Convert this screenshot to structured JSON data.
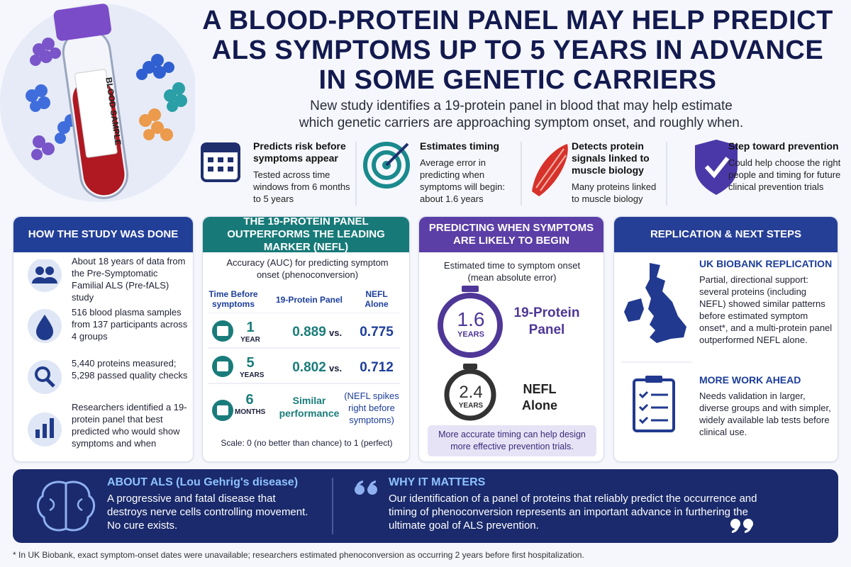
{
  "header": {
    "title_lines": [
      "A BLOOD-PROTEIN PANEL MAY HELP PREDICT",
      "ALS SYMPTOMS UP TO 5 YEARS IN ADVANCE",
      "IN SOME GENETIC CARRIERS"
    ],
    "subtitle_lines": [
      "New study identifies a 19-protein panel in blood that may help estimate",
      "which genetic carriers are approaching symptom onset, and roughly when."
    ],
    "tube_label": "BLOOD SAMPLE"
  },
  "features": [
    {
      "title": "Predicts risk before symptoms appear",
      "body": "Tested across time windows from 6 months to 5 years"
    },
    {
      "title": "Estimates timing",
      "body": "Average error in predicting when symptoms will begin: about 1.6 years"
    },
    {
      "title": "Detects protein signals linked to muscle biology",
      "body": "Many proteins linked to muscle biology"
    },
    {
      "title": "Step toward prevention",
      "body": "Could help choose the right people and timing for future clinical prevention trials"
    }
  ],
  "study": {
    "title": "HOW THE STUDY WAS DONE",
    "items": [
      "About 18 years of data from the Pre-Symptomatic Familial ALS (Pre-fALS) study",
      "516 blood plasma samples from 137 participants across 4 groups",
      "5,440 proteins measured; 5,298 passed quality checks",
      "Researchers identified a 19-protein panel that best predicted who would show symptoms and when"
    ]
  },
  "accuracy": {
    "title": "THE 19-PROTEIN PANEL OUTPERFORMS THE LEADING MARKER (NEFL)",
    "intro": "Accuracy (AUC) for predicting symptom onset (phenoconversion)",
    "headers": [
      "Time Before symptoms",
      "19-Protein Panel",
      "NEFL Alone"
    ],
    "rows": [
      {
        "num": "1",
        "unit": "YEAR",
        "panel": "0.889",
        "vs": "vs.",
        "nefl": "0.775"
      },
      {
        "num": "5",
        "unit": "YEARS",
        "panel": "0.802",
        "vs": "vs.",
        "nefl": "0.712"
      },
      {
        "num": "6",
        "unit": "MONTHS",
        "panel": "Similar performance",
        "nefl": "(NEFL spikes right before symptoms)"
      }
    ],
    "scale": "Scale: 0 (no better than chance) to 1 (perfect)"
  },
  "timing": {
    "title": "PREDICTING WHEN SYMPTOMS ARE LIKELY TO BEGIN",
    "intro": "Estimated time to symptom onset (mean absolute error)",
    "items": [
      {
        "value": "1.6",
        "unit": "YEARS",
        "label": "19-Protein Panel"
      },
      {
        "value": "2.4",
        "unit": "YEARS",
        "label": "NEFL Alone"
      }
    ],
    "note": "More accurate timing can help design more effective prevention trials."
  },
  "replication": {
    "title": "REPLICATION & NEXT STEPS",
    "sections": [
      {
        "title": "UK BIOBANK REPLICATION",
        "body": "Partial, directional support: several proteins (including NEFL) showed similar patterns before estimated symptom onset*, and a multi-protein panel outperformed NEFL alone."
      },
      {
        "title": "MORE WORK AHEAD",
        "body": "Needs validation in larger, diverse groups and with simpler, widely available lab tests before clinical use."
      }
    ]
  },
  "about": {
    "title": "ABOUT ALS (Lou Gehrig's disease)",
    "body": "A progressive and fatal disease that destroys nerve cells controlling movement. No cure exists."
  },
  "why": {
    "title": "WHY IT MATTERS",
    "body": "Our identification of a panel of proteins that reliably predict the occurrence and timing of phenoconversion represents an important advance in furthering the ultimate goal of ALS prevention."
  },
  "footnote": "* In UK Biobank, exact symptom-onset dates were unavailable; researchers estimated phenoconversion as occurring 2 years before first hospitalization."
}
